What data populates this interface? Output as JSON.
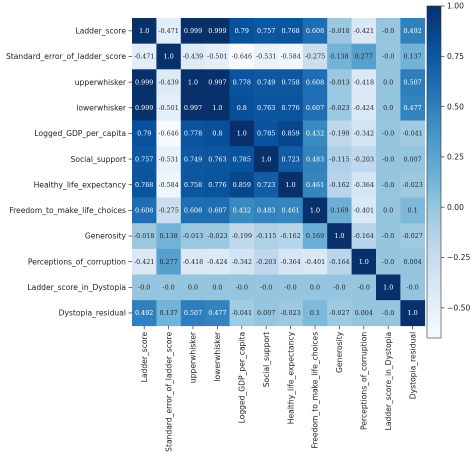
{
  "chart_data": {
    "type": "heatmap",
    "title": "",
    "labels": [
      "Ladder_score",
      "Standard_error_of_ladder_score",
      "upperwhisker",
      "lowerwhisker",
      "Logged_GDP_per_capita",
      "Social_support",
      "Healthy_life_expectancy",
      "Freedom_to_make_life_choices",
      "Generosity",
      "Perceptions_of_corruption",
      "Ladder_score_in_Dystopia",
      "Dystopia_residual"
    ],
    "values": [
      [
        1.0,
        -0.471,
        0.999,
        0.999,
        0.79,
        0.757,
        0.768,
        0.608,
        -0.018,
        -0.421,
        -0.0,
        0.492
      ],
      [
        -0.471,
        1.0,
        -0.439,
        -0.501,
        -0.646,
        -0.531,
        -0.584,
        -0.275,
        0.138,
        0.277,
        -0.0,
        0.137
      ],
      [
        0.999,
        -0.439,
        1.0,
        0.997,
        0.778,
        0.749,
        0.758,
        0.608,
        -0.013,
        -0.418,
        0.0,
        0.507
      ],
      [
        0.999,
        -0.501,
        0.997,
        1.0,
        0.8,
        0.763,
        0.776,
        0.607,
        -0.023,
        -0.424,
        0.0,
        0.477
      ],
      [
        0.79,
        -0.646,
        0.778,
        0.8,
        1.0,
        0.785,
        0.859,
        0.432,
        -0.199,
        -0.342,
        -0.0,
        -0.041
      ],
      [
        0.757,
        -0.531,
        0.749,
        0.763,
        0.785,
        1.0,
        0.723,
        0.483,
        -0.115,
        -0.203,
        -0.0,
        0.007
      ],
      [
        0.768,
        -0.584,
        0.758,
        0.776,
        0.859,
        0.723,
        1.0,
        0.461,
        -0.162,
        -0.364,
        -0.0,
        -0.023
      ],
      [
        0.608,
        -0.275,
        0.608,
        0.607,
        0.432,
        0.483,
        0.461,
        1.0,
        0.169,
        -0.401,
        0.0,
        0.1
      ],
      [
        -0.018,
        0.138,
        -0.013,
        -0.023,
        -0.199,
        -0.115,
        -0.162,
        0.169,
        1.0,
        -0.164,
        -0.0,
        -0.027
      ],
      [
        -0.421,
        0.277,
        -0.418,
        -0.424,
        -0.342,
        -0.203,
        -0.364,
        -0.401,
        -0.164,
        1.0,
        -0.0,
        0.004
      ],
      [
        -0.0,
        -0.0,
        0.0,
        0.0,
        -0.0,
        -0.0,
        -0.0,
        0.0,
        -0.0,
        -0.0,
        1.0,
        -0.0
      ],
      [
        0.492,
        0.137,
        0.507,
        0.477,
        -0.041,
        0.007,
        -0.023,
        0.1,
        -0.027,
        0.004,
        -0.0,
        1.0
      ]
    ],
    "value_labels": [
      [
        "1.0",
        "-0.471",
        "0.999",
        "0.999",
        "0.79",
        "0.757",
        "0.768",
        "0.608",
        "-0.018",
        "-0.421",
        "-0.0",
        "0.492"
      ],
      [
        "-0.471",
        "1.0",
        "-0.439",
        "-0.501",
        "-0.646",
        "-0.531",
        "-0.584",
        "-0.275",
        "0.138",
        "0.277",
        "-0.0",
        "0.137"
      ],
      [
        "0.999",
        "-0.439",
        "1.0",
        "0.997",
        "0.778",
        "0.749",
        "0.758",
        "0.608",
        "-0.013",
        "-0.418",
        "0.0",
        "0.507"
      ],
      [
        "0.999",
        "-0.501",
        "0.997",
        "1.0",
        "0.8",
        "0.763",
        "0.776",
        "0.607",
        "-0.023",
        "-0.424",
        "0.0",
        "0.477"
      ],
      [
        "0.79",
        "-0.646",
        "0.778",
        "0.8",
        "1.0",
        "0.785",
        "0.859",
        "0.432",
        "-0.199",
        "-0.342",
        "-0.0",
        "-0.041"
      ],
      [
        "0.757",
        "-0.531",
        "0.749",
        "0.763",
        "0.785",
        "1.0",
        "0.723",
        "0.483",
        "-0.115",
        "-0.203",
        "-0.0",
        "0.007"
      ],
      [
        "0.768",
        "-0.584",
        "0.758",
        "0.776",
        "0.859",
        "0.723",
        "1.0",
        "0.461",
        "-0.162",
        "-0.364",
        "-0.0",
        "-0.023"
      ],
      [
        "0.608",
        "-0.275",
        "0.608",
        "0.607",
        "0.432",
        "0.483",
        "0.461",
        "1.0",
        "0.169",
        "-0.401",
        "0.0",
        "0.1"
      ],
      [
        "-0.018",
        "0.138",
        "-0.013",
        "-0.023",
        "-0.199",
        "-0.115",
        "-0.162",
        "0.169",
        "1.0",
        "-0.164",
        "-0.0",
        "-0.027"
      ],
      [
        "-0.421",
        "0.277",
        "-0.418",
        "-0.424",
        "-0.342",
        "-0.203",
        "-0.364",
        "-0.401",
        "-0.164",
        "1.0",
        "-0.0",
        "0.004"
      ],
      [
        "-0.0",
        "-0.0",
        "0.0",
        "0.0",
        "-0.0",
        "-0.0",
        "-0.0",
        "0.0",
        "-0.0",
        "-0.0",
        "1.0",
        "-0.0"
      ],
      [
        "0.492",
        "0.137",
        "0.507",
        "0.477",
        "-0.041",
        "0.007",
        "-0.023",
        "0.1",
        "-0.027",
        "0.004",
        "-0.0",
        "1.0"
      ]
    ],
    "colorbar": {
      "range": [
        -0.65,
        1.0
      ],
      "ticks": [
        1.0,
        0.75,
        0.5,
        0.25,
        0.0,
        -0.25,
        -0.5
      ],
      "tick_labels": [
        "1.00",
        "0.75",
        "0.50",
        "0.25",
        "0.00",
        "−0.25",
        "−0.50"
      ]
    },
    "colors": {
      "low": "#f7fbff",
      "high": "#08306b",
      "stops": [
        "#f7fbff",
        "#deebf7",
        "#c6dbef",
        "#9ecae1",
        "#6baed6",
        "#4292c6",
        "#2171b5",
        "#08519c",
        "#08306b"
      ]
    },
    "grid": false,
    "legend_position": "right"
  }
}
